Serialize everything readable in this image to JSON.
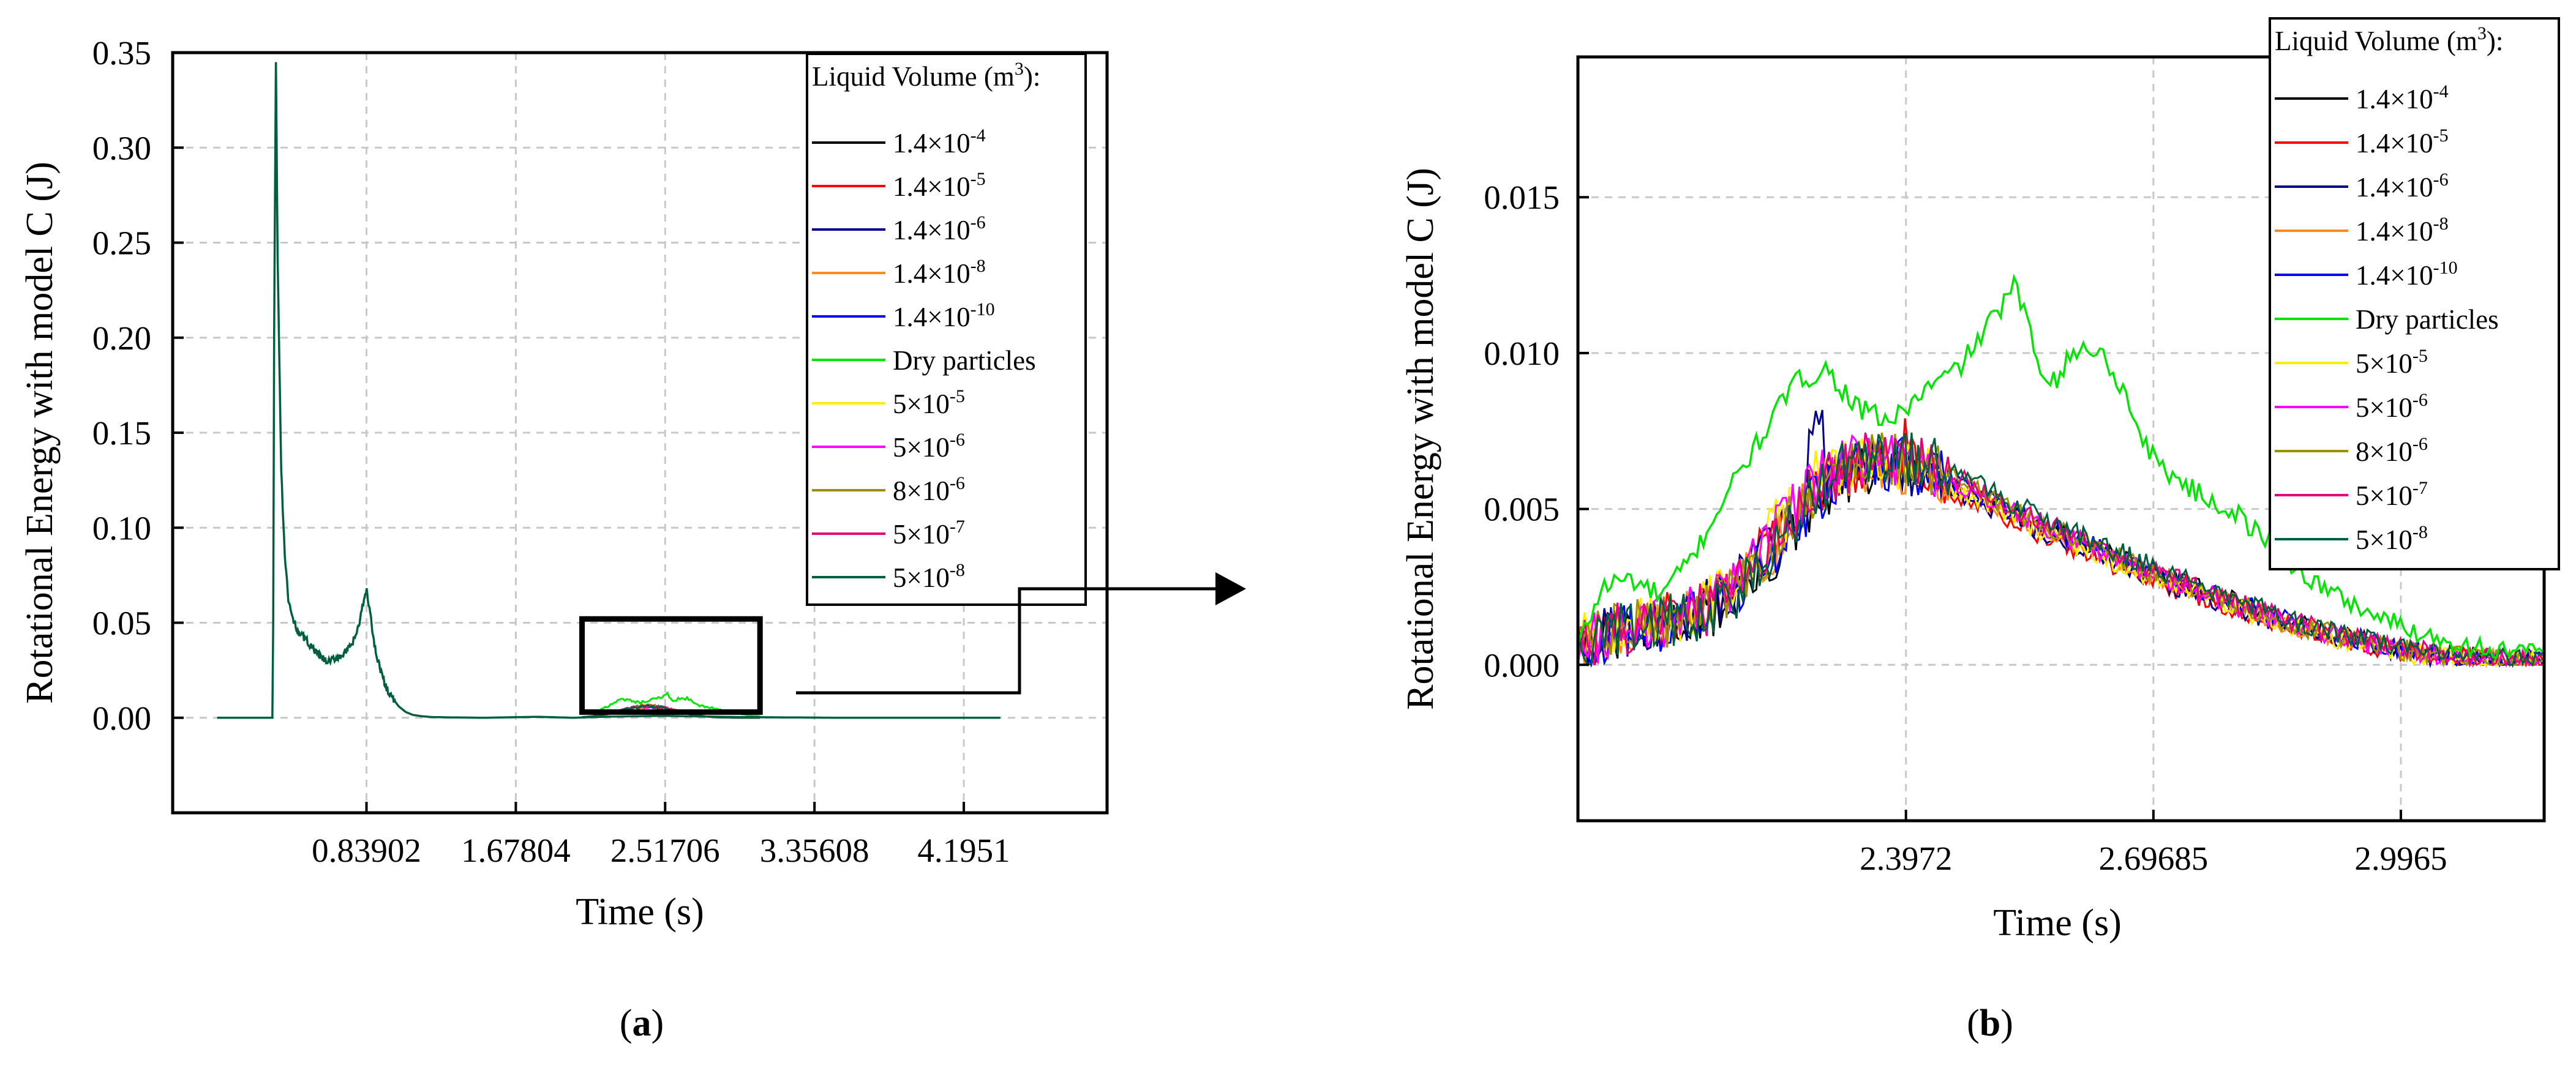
{
  "chart_data": [
    {
      "id": "a",
      "type": "line",
      "panel_label": "a",
      "xlabel": "Time (s)",
      "ylabel": "Rotational Energy with model C (J)",
      "xlim": [
        -0.25,
        5.0
      ],
      "ylim": [
        -0.05,
        0.35
      ],
      "x_ticks": [
        {
          "value": 0.83902,
          "label": "0.83902"
        },
        {
          "value": 1.67804,
          "label": "1.67804"
        },
        {
          "value": 2.51706,
          "label": "2.51706"
        },
        {
          "value": 3.35608,
          "label": "3.35608"
        },
        {
          "value": 4.1951,
          "label": "4.1951"
        }
      ],
      "y_ticks": [
        {
          "value": 0.0,
          "label": "0.00"
        },
        {
          "value": 0.05,
          "label": "0.05"
        },
        {
          "value": 0.1,
          "label": "0.10"
        },
        {
          "value": 0.15,
          "label": "0.15"
        },
        {
          "value": 0.2,
          "label": "0.20"
        },
        {
          "value": 0.25,
          "label": "0.25"
        },
        {
          "value": 0.3,
          "label": "0.30"
        },
        {
          "value": 0.35,
          "label": "0.35"
        }
      ],
      "grid": true,
      "legend_title": "Liquid Volume (m³):",
      "legend_position": "top-right",
      "zoom_box": {
        "x": [
          2.05,
          3.05
        ],
        "y": [
          0.003,
          0.052
        ]
      },
      "series": [
        {
          "name": "1.4×10⁻⁴",
          "color": "#000000"
        },
        {
          "name": "1.4×10⁻⁵",
          "color": "#ff0000"
        },
        {
          "name": "1.4×10⁻⁶",
          "color": "#00008b"
        },
        {
          "name": "1.4×10⁻⁸",
          "color": "#ff8c1a"
        },
        {
          "name": "1.4×10⁻¹⁰",
          "color": "#0000ff"
        },
        {
          "name": "Dry particles",
          "color": "#00e600"
        },
        {
          "name": "5×10⁻⁵",
          "color": "#ffee00"
        },
        {
          "name": "5×10⁻⁶",
          "color": "#ff00ff"
        },
        {
          "name": "8×10⁻⁶",
          "color": "#a09000"
        },
        {
          "name": "5×10⁻⁷",
          "color": "#e6007a"
        },
        {
          "name": "5×10⁻⁸",
          "color": "#005f3f"
        }
      ],
      "main_curve": {
        "description_series": "5×10⁻⁸ (all series overlap)",
        "x": [
          0.0,
          0.31,
          0.315,
          0.32,
          0.33,
          0.34,
          0.36,
          0.38,
          0.4,
          0.43,
          0.46,
          0.5,
          0.54,
          0.58,
          0.62,
          0.66,
          0.7,
          0.74,
          0.77,
          0.8,
          0.82,
          0.84,
          0.86,
          0.88,
          0.91,
          0.94,
          0.98,
          1.02,
          1.06,
          1.1,
          1.15,
          1.2,
          1.3,
          1.5,
          1.8,
          2.0,
          2.2,
          2.5,
          3.0,
          3.5,
          4.0,
          4.4
        ],
        "y": [
          0.0,
          0.0,
          0.05,
          0.2,
          0.345,
          0.24,
          0.13,
          0.085,
          0.062,
          0.05,
          0.045,
          0.041,
          0.036,
          0.032,
          0.029,
          0.031,
          0.033,
          0.036,
          0.041,
          0.05,
          0.06,
          0.067,
          0.055,
          0.04,
          0.028,
          0.018,
          0.011,
          0.006,
          0.003,
          0.0015,
          0.0008,
          0.0004,
          0.0002,
          0.0,
          0.0005,
          0.0,
          0.0006,
          0.001,
          0.0003,
          0.0,
          0.0,
          0.0
        ]
      }
    },
    {
      "id": "b",
      "type": "line",
      "panel_label": "b",
      "xlabel": "Time (s)",
      "ylabel": "Rotational Energy with model C (J)",
      "xlim": [
        2.0,
        3.17
      ],
      "ylim": [
        -0.005,
        0.0195
      ],
      "x_ticks": [
        {
          "value": 2.3972,
          "label": "2.3972"
        },
        {
          "value": 2.69685,
          "label": "2.69685"
        },
        {
          "value": 2.9965,
          "label": "2.9965"
        }
      ],
      "y_ticks": [
        {
          "value": 0.0,
          "label": "0.000"
        },
        {
          "value": 0.005,
          "label": "0.005"
        },
        {
          "value": 0.01,
          "label": "0.010"
        },
        {
          "value": 0.015,
          "label": "0.015"
        }
      ],
      "grid": true,
      "legend_title": "Liquid Volume (m³):",
      "legend_position": "top-right",
      "series": [
        {
          "name": "1.4×10⁻⁴",
          "color": "#000000"
        },
        {
          "name": "1.4×10⁻⁵",
          "color": "#ff0000"
        },
        {
          "name": "1.4×10⁻⁶",
          "color": "#00008b"
        },
        {
          "name": "1.4×10⁻⁸",
          "color": "#ff8c1a"
        },
        {
          "name": "1.4×10⁻¹⁰",
          "color": "#0000ff"
        },
        {
          "name": "Dry particles",
          "color": "#00e600"
        },
        {
          "name": "5×10⁻⁵",
          "color": "#ffee00"
        },
        {
          "name": "5×10⁻⁶",
          "color": "#ff00ff"
        },
        {
          "name": "8×10⁻⁶",
          "color": "#a09000"
        },
        {
          "name": "5×10⁻⁷",
          "color": "#e6007a"
        },
        {
          "name": "5×10⁻⁸",
          "color": "#005f3f"
        }
      ],
      "envelope_wet": {
        "x": [
          2.0,
          2.05,
          2.1,
          2.15,
          2.2,
          2.25,
          2.3,
          2.35,
          2.4,
          2.45,
          2.5,
          2.55,
          2.6,
          2.65,
          2.7,
          2.75,
          2.8,
          2.85,
          2.9,
          2.95,
          3.0,
          3.05,
          3.1,
          3.17
        ],
        "y": [
          0.0006,
          0.0012,
          0.0014,
          0.0018,
          0.0028,
          0.0045,
          0.0062,
          0.0068,
          0.0067,
          0.0062,
          0.0055,
          0.0048,
          0.0042,
          0.0036,
          0.003,
          0.0025,
          0.002,
          0.0015,
          0.0011,
          0.0008,
          0.0005,
          0.0003,
          0.0002,
          0.0001
        ]
      },
      "dry_particles": {
        "x": [
          2.0,
          2.03,
          2.06,
          2.1,
          2.14,
          2.18,
          2.22,
          2.26,
          2.3,
          2.34,
          2.38,
          2.42,
          2.46,
          2.5,
          2.53,
          2.56,
          2.58,
          2.6,
          2.62,
          2.64,
          2.66,
          2.68,
          2.7,
          2.75,
          2.8,
          2.85,
          2.9,
          2.95,
          3.0,
          3.05,
          3.1,
          3.17
        ],
        "y": [
          0.0006,
          0.0025,
          0.0028,
          0.0022,
          0.0035,
          0.0055,
          0.0072,
          0.009,
          0.0095,
          0.0082,
          0.0078,
          0.0088,
          0.0095,
          0.011,
          0.0122,
          0.0095,
          0.0092,
          0.01,
          0.0102,
          0.0098,
          0.0088,
          0.0075,
          0.0065,
          0.0055,
          0.0048,
          0.0035,
          0.0025,
          0.0018,
          0.0012,
          0.0008,
          0.0005,
          0.0003
        ]
      }
    }
  ]
}
